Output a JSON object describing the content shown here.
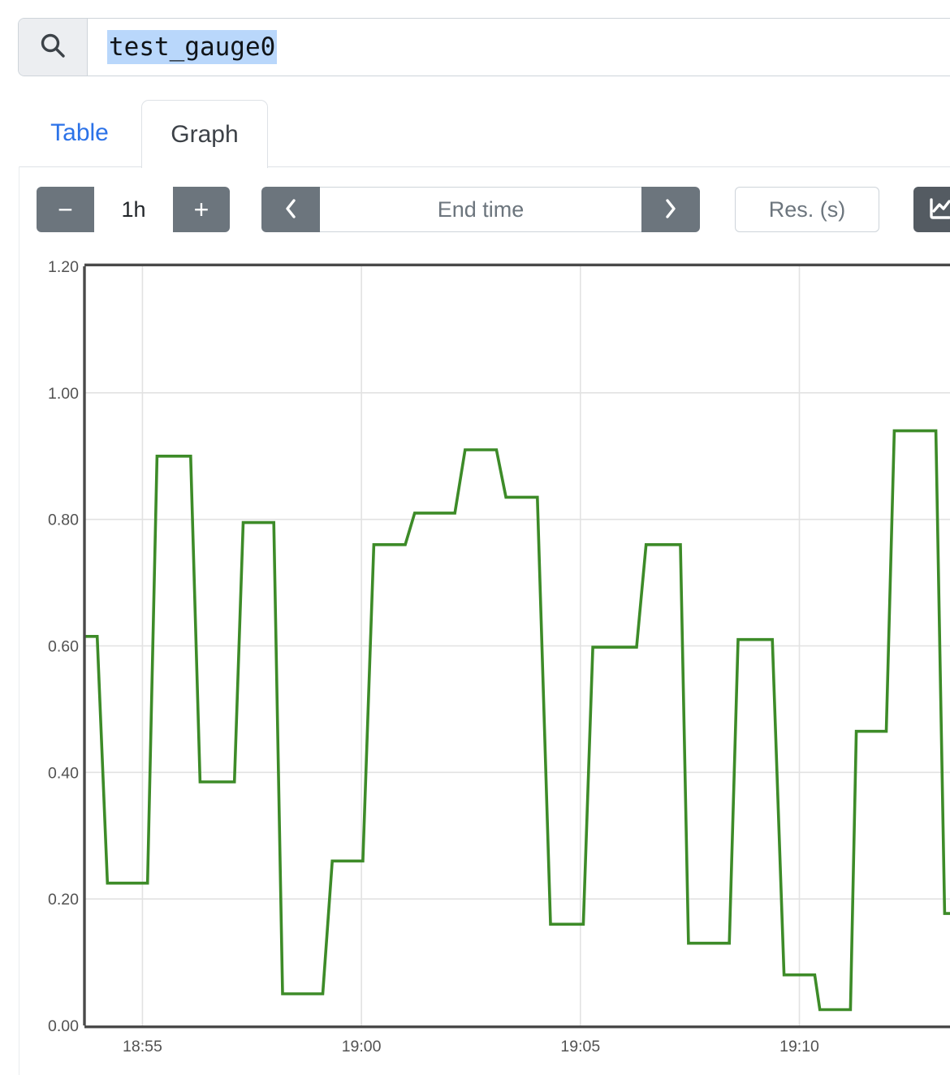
{
  "query_bar": {
    "value": "test_gauge0"
  },
  "tabs": {
    "table_label": "Table",
    "graph_label": "Graph",
    "active": "Graph"
  },
  "controls": {
    "minus_label": "−",
    "duration_value": "1h",
    "plus_label": "+",
    "end_time_placeholder": "End time",
    "res_placeholder": "Res. (s)"
  },
  "colors": {
    "accent_blue": "#2b72e8",
    "button_gray": "#6c757d",
    "button_dark": "#545b62",
    "series_green": "#3d8b28",
    "grid_line": "#e2e2e2",
    "axis_frame": "#4a4a4a",
    "tick_text": "#525252",
    "selection_blue": "#b9d7fb",
    "input_border": "#ced4da"
  },
  "chart_data": {
    "type": "line",
    "title": "",
    "xlabel": "",
    "ylabel": "",
    "grid": true,
    "legend": "none",
    "x_range": [
      "18:53:40",
      "19:13:28"
    ],
    "y_range": [
      0,
      1.2
    ],
    "x_ticks": [
      {
        "label": "18:55",
        "time": "18:55:00"
      },
      {
        "label": "19:00",
        "time": "19:00:00"
      },
      {
        "label": "19:05",
        "time": "19:05:00"
      },
      {
        "label": "19:10",
        "time": "19:10:00"
      }
    ],
    "y_ticks": [
      {
        "label": "0.00",
        "value": 0.0
      },
      {
        "label": "0.20",
        "value": 0.2
      },
      {
        "label": "0.40",
        "value": 0.4
      },
      {
        "label": "0.60",
        "value": 0.6
      },
      {
        "label": "0.80",
        "value": 0.8
      },
      {
        "label": "1.00",
        "value": 1.0
      },
      {
        "label": "1.20",
        "value": 1.2
      }
    ],
    "series": [
      {
        "name": "test_gauge0",
        "color": "#3d8b28",
        "points": [
          [
            "18:53:40",
            0.615
          ],
          [
            "18:53:58",
            0.615
          ],
          [
            "18:54:12",
            0.225
          ],
          [
            "18:55:07",
            0.225
          ],
          [
            "18:55:20",
            0.9
          ],
          [
            "18:56:06",
            0.9
          ],
          [
            "18:56:19",
            0.385
          ],
          [
            "18:57:06",
            0.385
          ],
          [
            "18:57:18",
            0.795
          ],
          [
            "18:58:00",
            0.795
          ],
          [
            "18:58:12",
            0.05
          ],
          [
            "18:59:07",
            0.05
          ],
          [
            "18:59:20",
            0.26
          ],
          [
            "19:00:02",
            0.26
          ],
          [
            "19:00:17",
            0.76
          ],
          [
            "19:01:00",
            0.76
          ],
          [
            "19:01:13",
            0.81
          ],
          [
            "19:02:08",
            0.81
          ],
          [
            "19:02:22",
            0.91
          ],
          [
            "19:03:05",
            0.91
          ],
          [
            "19:03:18",
            0.835
          ],
          [
            "19:04:01",
            0.835
          ],
          [
            "19:04:19",
            0.16
          ],
          [
            "19:05:04",
            0.16
          ],
          [
            "19:05:17",
            0.598
          ],
          [
            "19:06:17",
            0.598
          ],
          [
            "19:06:30",
            0.76
          ],
          [
            "19:07:17",
            0.76
          ],
          [
            "19:07:28",
            0.13
          ],
          [
            "19:08:24",
            0.13
          ],
          [
            "19:08:36",
            0.61
          ],
          [
            "19:09:23",
            0.61
          ],
          [
            "19:09:39",
            0.08
          ],
          [
            "19:10:21",
            0.08
          ],
          [
            "19:10:28",
            0.025
          ],
          [
            "19:11:10",
            0.025
          ],
          [
            "19:11:18",
            0.465
          ],
          [
            "19:11:59",
            0.465
          ],
          [
            "19:12:10",
            0.94
          ],
          [
            "19:13:07",
            0.94
          ],
          [
            "19:13:19",
            0.177
          ],
          [
            "19:13:37",
            0.177
          ]
        ]
      }
    ]
  }
}
